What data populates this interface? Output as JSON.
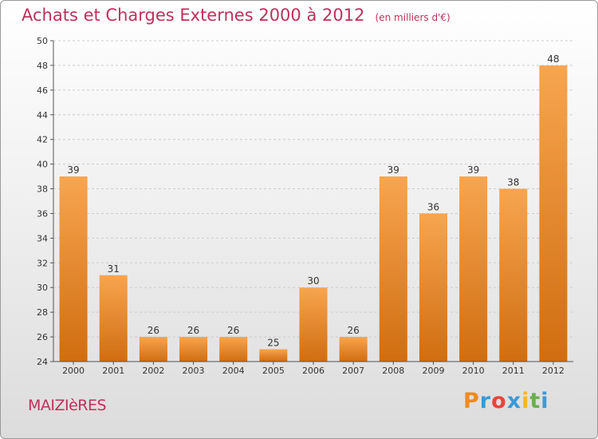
{
  "header": {
    "title": "Achats et Charges Externes 2000 à 2012",
    "subtitle": "(en milliers d'€)"
  },
  "footer": {
    "town": "MAIZIèRES",
    "logo_letters": [
      "P",
      "r",
      "o",
      "x",
      "i",
      "t",
      "i"
    ],
    "logo_colors": [
      "#f08a1e",
      "#3a9ad9",
      "#e8443a",
      "#3a9ad9",
      "#f5b81a",
      "#6ab04c",
      "#3a9ad9"
    ]
  },
  "colors": {
    "bar_top": "#f7a550",
    "bar_bottom": "#d06d10",
    "axis": "#555555",
    "grid": "#cccccc",
    "title": "#c0305a"
  },
  "chart_data": {
    "type": "bar",
    "title": "Achats et Charges Externes 2000 à 2012",
    "subtitle": "(en milliers d'€)",
    "xlabel": "",
    "ylabel": "",
    "categories": [
      "2000",
      "2001",
      "2002",
      "2003",
      "2004",
      "2005",
      "2006",
      "2007",
      "2008",
      "2009",
      "2010",
      "2011",
      "2012"
    ],
    "values": [
      39,
      31,
      26,
      26,
      26,
      25,
      30,
      26,
      39,
      36,
      39,
      38,
      48
    ],
    "ylim": [
      24,
      50
    ],
    "yticks": [
      24,
      26,
      28,
      30,
      32,
      34,
      36,
      38,
      40,
      42,
      44,
      46,
      48,
      50
    ],
    "grid": true,
    "data_labels": true
  }
}
